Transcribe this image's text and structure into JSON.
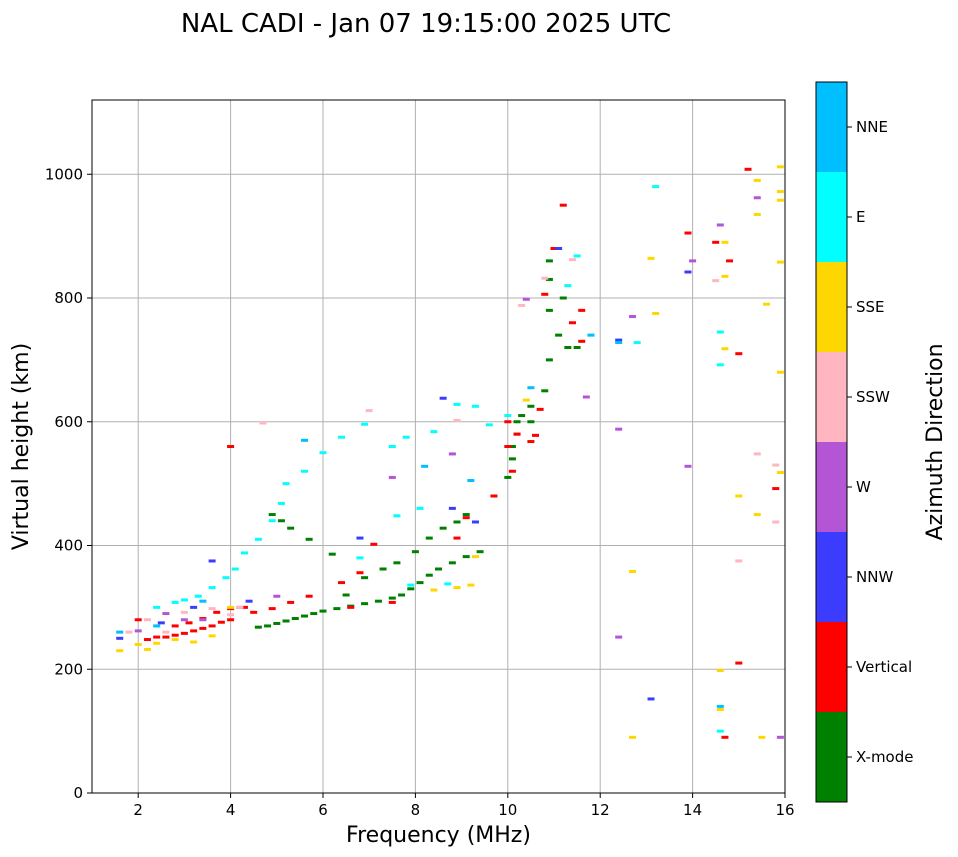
{
  "chart_data": {
    "type": "scatter",
    "title": "NAL CADI - Jan 07 19:15:00 2025 UTC",
    "xlabel": "Frequency (MHz)",
    "ylabel": "Virtual height (km)",
    "xlim": [
      1,
      16
    ],
    "ylim": [
      0,
      1120
    ],
    "xticks": [
      2,
      4,
      6,
      8,
      10,
      12,
      14,
      16
    ],
    "xtick_labels": [
      "2",
      "4",
      "6",
      "8",
      "10",
      "12",
      "14",
      "16"
    ],
    "yticks": [
      0,
      200,
      400,
      600,
      800,
      1000
    ],
    "ytick_labels": [
      "0",
      "200",
      "400",
      "600",
      "800",
      "1000"
    ],
    "grid": true,
    "colorbar": {
      "label": "Azimuth Direction",
      "categories": [
        {
          "name": "X-mode",
          "color": "#008000"
        },
        {
          "name": "Vertical",
          "color": "#ff0000"
        },
        {
          "name": "NNW",
          "color": "#3c3cff"
        },
        {
          "name": "W",
          "color": "#b455d6"
        },
        {
          "name": "SSW",
          "color": "#ffb6c1"
        },
        {
          "name": "SSE",
          "color": "#ffd700"
        },
        {
          "name": "E",
          "color": "#00ffff"
        },
        {
          "name": "NNE",
          "color": "#00bfff"
        }
      ]
    },
    "series": [
      {
        "name": "X-mode",
        "points": [
          [
            4.6,
            268
          ],
          [
            4.8,
            270
          ],
          [
            5.0,
            274
          ],
          [
            5.2,
            278
          ],
          [
            5.4,
            282
          ],
          [
            5.6,
            286
          ],
          [
            5.8,
            290
          ],
          [
            6.0,
            294
          ],
          [
            6.3,
            298
          ],
          [
            6.6,
            302
          ],
          [
            6.9,
            306
          ],
          [
            7.2,
            310
          ],
          [
            7.5,
            315
          ],
          [
            7.7,
            320
          ],
          [
            7.9,
            330
          ],
          [
            8.1,
            340
          ],
          [
            8.3,
            352
          ],
          [
            8.5,
            362
          ],
          [
            8.8,
            372
          ],
          [
            9.1,
            382
          ],
          [
            9.4,
            390
          ],
          [
            10.0,
            510
          ],
          [
            10.1,
            540
          ],
          [
            10.1,
            560
          ],
          [
            10.2,
            580
          ],
          [
            10.2,
            600
          ],
          [
            10.3,
            610
          ],
          [
            10.5,
            600
          ],
          [
            10.5,
            625
          ],
          [
            10.8,
            650
          ],
          [
            10.9,
            700
          ],
          [
            10.9,
            780
          ],
          [
            10.9,
            830
          ],
          [
            10.9,
            860
          ],
          [
            11.1,
            740
          ],
          [
            11.3,
            720
          ],
          [
            11.5,
            720
          ],
          [
            11.2,
            800
          ],
          [
            6.5,
            320
          ],
          [
            6.9,
            348
          ],
          [
            7.3,
            362
          ],
          [
            7.6,
            372
          ],
          [
            8.0,
            390
          ],
          [
            8.3,
            412
          ],
          [
            8.6,
            428
          ],
          [
            8.9,
            438
          ],
          [
            9.1,
            450
          ],
          [
            6.2,
            386
          ],
          [
            5.7,
            410
          ],
          [
            5.3,
            428
          ],
          [
            5.1,
            440
          ],
          [
            4.9,
            450
          ]
        ]
      },
      {
        "name": "Vertical",
        "points": [
          [
            2.2,
            248
          ],
          [
            2.4,
            252
          ],
          [
            2.6,
            252
          ],
          [
            2.8,
            255
          ],
          [
            3.0,
            258
          ],
          [
            3.2,
            262
          ],
          [
            3.4,
            266
          ],
          [
            3.6,
            270
          ],
          [
            3.8,
            276
          ],
          [
            4.0,
            280
          ],
          [
            2.8,
            270
          ],
          [
            3.1,
            275
          ],
          [
            3.4,
            282
          ],
          [
            3.7,
            292
          ],
          [
            4.0,
            298
          ],
          [
            4.3,
            300
          ],
          [
            4.5,
            292
          ],
          [
            4.9,
            298
          ],
          [
            5.3,
            308
          ],
          [
            5.7,
            318
          ],
          [
            6.4,
            340
          ],
          [
            6.8,
            356
          ],
          [
            6.6,
            300
          ],
          [
            7.5,
            308
          ],
          [
            7.1,
            402
          ],
          [
            8.9,
            412
          ],
          [
            9.1,
            445
          ],
          [
            9.7,
            480
          ],
          [
            10.0,
            560
          ],
          [
            10.0,
            600
          ],
          [
            10.1,
            520
          ],
          [
            10.2,
            580
          ],
          [
            10.5,
            568
          ],
          [
            10.6,
            578
          ],
          [
            10.7,
            620
          ],
          [
            10.8,
            806
          ],
          [
            11.0,
            880
          ],
          [
            11.2,
            950
          ],
          [
            11.4,
            760
          ],
          [
            11.6,
            730
          ],
          [
            11.6,
            780
          ],
          [
            4.0,
            560
          ],
          [
            2.0,
            280
          ],
          [
            14.5,
            890
          ],
          [
            14.8,
            860
          ],
          [
            15.0,
            710
          ],
          [
            15.2,
            1008
          ],
          [
            15.8,
            492
          ],
          [
            15.0,
            210
          ],
          [
            14.7,
            90
          ],
          [
            13.9,
            905
          ]
        ]
      },
      {
        "name": "NNW",
        "points": [
          [
            1.6,
            250
          ],
          [
            2.5,
            275
          ],
          [
            3.2,
            300
          ],
          [
            3.6,
            375
          ],
          [
            4.4,
            310
          ],
          [
            6.8,
            412
          ],
          [
            8.6,
            638
          ],
          [
            8.8,
            460
          ],
          [
            9.3,
            438
          ],
          [
            13.9,
            842
          ],
          [
            13.1,
            152
          ],
          [
            12.4,
            732
          ],
          [
            11.1,
            880
          ]
        ]
      },
      {
        "name": "W",
        "points": [
          [
            2.0,
            262
          ],
          [
            2.6,
            290
          ],
          [
            3.0,
            280
          ],
          [
            3.4,
            280
          ],
          [
            4.2,
            300
          ],
          [
            5.0,
            318
          ],
          [
            7.5,
            510
          ],
          [
            8.8,
            548
          ],
          [
            10.4,
            798
          ],
          [
            11.7,
            640
          ],
          [
            12.7,
            770
          ],
          [
            12.4,
            588
          ],
          [
            14.0,
            860
          ],
          [
            14.6,
            918
          ],
          [
            15.4,
            962
          ],
          [
            15.9,
            90
          ],
          [
            12.4,
            252
          ],
          [
            13.9,
            528
          ]
        ]
      },
      {
        "name": "SSW",
        "points": [
          [
            1.8,
            260
          ],
          [
            2.2,
            280
          ],
          [
            2.6,
            260
          ],
          [
            3.0,
            292
          ],
          [
            3.6,
            298
          ],
          [
            4.0,
            288
          ],
          [
            4.2,
            300
          ],
          [
            4.7,
            598
          ],
          [
            7.0,
            618
          ],
          [
            8.9,
            602
          ],
          [
            10.3,
            788
          ],
          [
            10.8,
            832
          ],
          [
            11.4,
            862
          ],
          [
            14.5,
            828
          ],
          [
            15.0,
            375
          ],
          [
            15.4,
            548
          ],
          [
            15.8,
            530
          ],
          [
            15.8,
            438
          ]
        ]
      },
      {
        "name": "SSE",
        "points": [
          [
            1.6,
            230
          ],
          [
            2.0,
            240
          ],
          [
            2.2,
            232
          ],
          [
            2.4,
            242
          ],
          [
            2.8,
            248
          ],
          [
            3.2,
            244
          ],
          [
            3.6,
            254
          ],
          [
            4.0,
            300
          ],
          [
            8.4,
            328
          ],
          [
            8.9,
            332
          ],
          [
            9.2,
            336
          ],
          [
            9.3,
            382
          ],
          [
            10.4,
            635
          ],
          [
            12.7,
            358
          ],
          [
            12.7,
            90
          ],
          [
            13.2,
            775
          ],
          [
            13.1,
            864
          ],
          [
            14.6,
            135
          ],
          [
            14.6,
            198
          ],
          [
            14.7,
            835
          ],
          [
            14.7,
            890
          ],
          [
            14.7,
            718
          ],
          [
            15.0,
            480
          ],
          [
            15.4,
            450
          ],
          [
            15.5,
            90
          ],
          [
            15.9,
            1012
          ],
          [
            15.9,
            972
          ],
          [
            15.9,
            958
          ],
          [
            15.9,
            858
          ],
          [
            15.9,
            680
          ],
          [
            15.9,
            518
          ],
          [
            15.4,
            990
          ],
          [
            15.4,
            935
          ],
          [
            15.6,
            790
          ]
        ]
      },
      {
        "name": "E",
        "points": [
          [
            2.4,
            300
          ],
          [
            2.8,
            308
          ],
          [
            3.0,
            312
          ],
          [
            3.3,
            318
          ],
          [
            3.6,
            332
          ],
          [
            3.9,
            348
          ],
          [
            4.1,
            362
          ],
          [
            4.3,
            388
          ],
          [
            4.6,
            410
          ],
          [
            4.9,
            440
          ],
          [
            5.1,
            468
          ],
          [
            5.2,
            500
          ],
          [
            5.6,
            520
          ],
          [
            6.0,
            550
          ],
          [
            6.4,
            575
          ],
          [
            6.9,
            596
          ],
          [
            7.5,
            560
          ],
          [
            7.8,
            575
          ],
          [
            8.4,
            584
          ],
          [
            8.9,
            628
          ],
          [
            9.3,
            625
          ],
          [
            9.6,
            595
          ],
          [
            10.0,
            610
          ],
          [
            11.3,
            820
          ],
          [
            11.5,
            868
          ],
          [
            13.2,
            980
          ],
          [
            12.8,
            728
          ],
          [
            14.6,
            745
          ],
          [
            14.6,
            692
          ],
          [
            14.6,
            100
          ],
          [
            7.9,
            336
          ],
          [
            8.7,
            338
          ],
          [
            6.8,
            380
          ],
          [
            7.6,
            448
          ],
          [
            8.1,
            460
          ]
        ]
      },
      {
        "name": "NNE",
        "points": [
          [
            1.6,
            260
          ],
          [
            2.4,
            270
          ],
          [
            3.4,
            310
          ],
          [
            5.6,
            570
          ],
          [
            8.2,
            528
          ],
          [
            9.2,
            505
          ],
          [
            10.5,
            655
          ],
          [
            11.8,
            740
          ],
          [
            12.4,
            728
          ],
          [
            14.6,
            140
          ]
        ]
      }
    ]
  }
}
